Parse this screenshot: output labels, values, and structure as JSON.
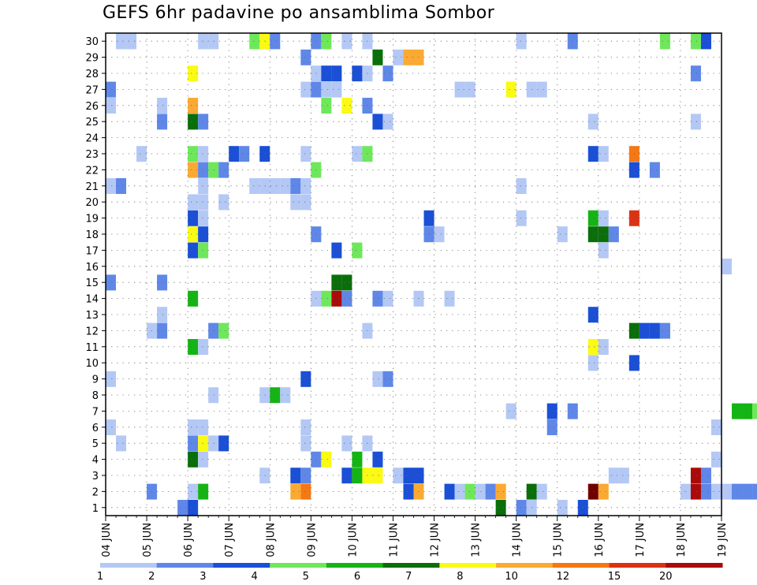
{
  "title": "GEFS 6hr padavine po ansamblima Sombor",
  "chart_data": {
    "type": "heatmap",
    "x_ticks": [
      "04 JUN",
      "05 JUN",
      "06 JUN",
      "07 JUN",
      "08 JUN",
      "09 JUN",
      "10 JUN",
      "11 JUN",
      "12 JUN",
      "13 JUN",
      "14 JUN",
      "15 JUN",
      "16 JUN",
      "17 JUN",
      "18 JUN",
      "19 JUN"
    ],
    "y_ticks": [
      "1",
      "2",
      "3",
      "4",
      "5",
      "6",
      "7",
      "8",
      "9",
      "10",
      "11",
      "12",
      "13",
      "14",
      "15",
      "16",
      "17",
      "18",
      "19",
      "20",
      "21",
      "22",
      "23",
      "24",
      "25",
      "26",
      "27",
      "28",
      "29",
      "30"
    ],
    "xlim": [
      "04 JUN 00Z",
      "19 JUN 00Z"
    ],
    "ylim": [
      1,
      30
    ],
    "grid": true,
    "colorbar": {
      "labels": [
        "1",
        "2",
        "3",
        "4",
        "5",
        "6",
        "7",
        "8",
        "10",
        "12",
        "15",
        "20"
      ],
      "colors": [
        "#b4c8f5",
        "#5f87e8",
        "#1a4fd6",
        "#6ee85a",
        "#14b414",
        "#0a6e0a",
        "#fafa14",
        "#faaa32",
        "#f57814",
        "#dc3214",
        "#aa0a0a",
        "#6e0000"
      ]
    },
    "cells": [
      [
        1,
        30,
        1
      ],
      [
        2,
        30,
        1
      ],
      [
        9,
        30,
        1
      ],
      [
        10,
        30,
        1
      ],
      [
        14,
        30,
        4
      ],
      [
        15,
        30,
        7
      ],
      [
        16,
        30,
        2
      ],
      [
        20,
        30,
        2
      ],
      [
        21,
        30,
        4
      ],
      [
        23,
        30,
        1
      ],
      [
        25,
        30,
        1
      ],
      [
        40,
        30,
        1
      ],
      [
        45,
        30,
        2
      ],
      [
        54,
        30,
        4
      ],
      [
        57,
        30,
        4
      ],
      [
        58,
        30,
        3
      ],
      [
        64,
        30,
        3
      ],
      [
        65,
        30,
        4
      ],
      [
        19,
        29,
        2
      ],
      [
        26,
        29,
        6
      ],
      [
        28,
        29,
        1
      ],
      [
        29,
        29,
        8
      ],
      [
        30,
        29,
        8
      ],
      [
        8,
        28,
        7
      ],
      [
        20,
        28,
        1
      ],
      [
        21,
        28,
        3
      ],
      [
        22,
        28,
        3
      ],
      [
        24,
        28,
        3
      ],
      [
        25,
        28,
        1
      ],
      [
        27,
        28,
        2
      ],
      [
        57,
        28,
        2
      ],
      [
        64,
        28,
        5
      ],
      [
        65,
        28,
        2
      ],
      [
        66,
        28,
        2
      ],
      [
        0,
        27,
        2
      ],
      [
        19,
        27,
        1
      ],
      [
        20,
        27,
        2
      ],
      [
        21,
        27,
        1
      ],
      [
        22,
        27,
        1
      ],
      [
        34,
        27,
        1
      ],
      [
        35,
        27,
        1
      ],
      [
        39,
        27,
        7
      ],
      [
        41,
        27,
        1
      ],
      [
        42,
        27,
        1
      ],
      [
        0,
        26,
        1
      ],
      [
        5,
        26,
        1
      ],
      [
        8,
        26,
        8
      ],
      [
        21,
        26,
        4
      ],
      [
        23,
        26,
        7
      ],
      [
        25,
        26,
        2
      ],
      [
        5,
        25,
        2
      ],
      [
        8,
        25,
        6
      ],
      [
        9,
        25,
        2
      ],
      [
        26,
        25,
        3
      ],
      [
        27,
        25,
        1
      ],
      [
        47,
        25,
        1
      ],
      [
        57,
        25,
        1
      ],
      [
        3,
        23,
        1
      ],
      [
        8,
        23,
        4
      ],
      [
        9,
        23,
        1
      ],
      [
        12,
        23,
        3
      ],
      [
        13,
        23,
        2
      ],
      [
        15,
        23,
        3
      ],
      [
        19,
        23,
        1
      ],
      [
        24,
        23,
        1
      ],
      [
        25,
        23,
        4
      ],
      [
        47,
        23,
        3
      ],
      [
        48,
        23,
        1
      ],
      [
        51,
        23,
        9
      ],
      [
        67,
        23,
        3
      ],
      [
        8,
        22,
        8
      ],
      [
        9,
        22,
        2
      ],
      [
        10,
        22,
        4
      ],
      [
        11,
        22,
        2
      ],
      [
        20,
        22,
        4
      ],
      [
        51,
        22,
        3
      ],
      [
        53,
        22,
        2
      ],
      [
        0,
        21,
        1
      ],
      [
        1,
        21,
        2
      ],
      [
        9,
        21,
        1
      ],
      [
        14,
        21,
        1
      ],
      [
        15,
        21,
        1
      ],
      [
        16,
        21,
        1
      ],
      [
        17,
        21,
        1
      ],
      [
        18,
        21,
        2
      ],
      [
        19,
        21,
        1
      ],
      [
        40,
        21,
        1
      ],
      [
        8,
        20,
        1
      ],
      [
        9,
        20,
        1
      ],
      [
        11,
        20,
        1
      ],
      [
        18,
        20,
        1
      ],
      [
        19,
        20,
        1
      ],
      [
        8,
        19,
        3
      ],
      [
        9,
        19,
        1
      ],
      [
        31,
        19,
        3
      ],
      [
        40,
        19,
        1
      ],
      [
        47,
        19,
        5
      ],
      [
        48,
        19,
        1
      ],
      [
        51,
        19,
        10
      ],
      [
        8,
        18,
        7
      ],
      [
        9,
        18,
        3
      ],
      [
        20,
        18,
        2
      ],
      [
        31,
        18,
        2
      ],
      [
        32,
        18,
        1
      ],
      [
        44,
        18,
        1
      ],
      [
        47,
        18,
        6
      ],
      [
        48,
        18,
        6
      ],
      [
        49,
        18,
        2
      ],
      [
        8,
        17,
        3
      ],
      [
        9,
        17,
        4
      ],
      [
        22,
        17,
        3
      ],
      [
        24,
        17,
        4
      ],
      [
        48,
        17,
        1
      ],
      [
        60,
        16,
        1
      ],
      [
        0,
        15,
        2
      ],
      [
        5,
        15,
        2
      ],
      [
        22,
        15,
        6
      ],
      [
        23,
        15,
        6
      ],
      [
        65,
        15,
        2
      ],
      [
        8,
        14,
        5
      ],
      [
        20,
        14,
        1
      ],
      [
        21,
        14,
        4
      ],
      [
        22,
        14,
        11
      ],
      [
        23,
        14,
        2
      ],
      [
        26,
        14,
        2
      ],
      [
        27,
        14,
        1
      ],
      [
        30,
        14,
        1
      ],
      [
        33,
        14,
        1
      ],
      [
        5,
        13,
        1
      ],
      [
        47,
        13,
        3
      ],
      [
        4,
        12,
        1
      ],
      [
        5,
        12,
        2
      ],
      [
        10,
        12,
        2
      ],
      [
        11,
        12,
        4
      ],
      [
        25,
        12,
        1
      ],
      [
        51,
        12,
        6
      ],
      [
        52,
        12,
        3
      ],
      [
        53,
        12,
        3
      ],
      [
        54,
        12,
        2
      ],
      [
        8,
        11,
        5
      ],
      [
        9,
        11,
        1
      ],
      [
        47,
        11,
        7
      ],
      [
        48,
        11,
        1
      ],
      [
        47,
        10,
        1
      ],
      [
        51,
        10,
        3
      ],
      [
        0,
        9,
        1
      ],
      [
        19,
        9,
        3
      ],
      [
        26,
        9,
        1
      ],
      [
        27,
        9,
        2
      ],
      [
        10,
        8,
        1
      ],
      [
        15,
        8,
        1
      ],
      [
        16,
        8,
        5
      ],
      [
        17,
        8,
        1
      ],
      [
        66,
        8,
        1
      ],
      [
        67,
        8,
        6
      ],
      [
        39,
        7,
        1
      ],
      [
        43,
        7,
        3
      ],
      [
        45,
        7,
        2
      ],
      [
        61,
        7,
        5
      ],
      [
        62,
        7,
        5
      ],
      [
        63,
        7,
        4
      ],
      [
        64,
        7,
        2
      ],
      [
        66,
        7,
        4
      ],
      [
        67,
        7,
        6
      ],
      [
        0,
        6,
        1
      ],
      [
        8,
        6,
        1
      ],
      [
        9,
        6,
        1
      ],
      [
        19,
        6,
        1
      ],
      [
        43,
        6,
        2
      ],
      [
        59,
        6,
        1
      ],
      [
        1,
        5,
        1
      ],
      [
        8,
        5,
        2
      ],
      [
        9,
        5,
        7
      ],
      [
        10,
        5,
        1
      ],
      [
        11,
        5,
        3
      ],
      [
        19,
        5,
        1
      ],
      [
        23,
        5,
        1
      ],
      [
        25,
        5,
        1
      ],
      [
        8,
        4,
        6
      ],
      [
        9,
        4,
        1
      ],
      [
        20,
        4,
        2
      ],
      [
        21,
        4,
        7
      ],
      [
        24,
        4,
        5
      ],
      [
        26,
        4,
        3
      ],
      [
        59,
        4,
        1
      ],
      [
        15,
        3,
        1
      ],
      [
        18,
        3,
        3
      ],
      [
        19,
        3,
        2
      ],
      [
        23,
        3,
        3
      ],
      [
        24,
        3,
        5
      ],
      [
        25,
        3,
        7
      ],
      [
        26,
        3,
        7
      ],
      [
        28,
        3,
        1
      ],
      [
        29,
        3,
        3
      ],
      [
        30,
        3,
        3
      ],
      [
        49,
        3,
        1
      ],
      [
        50,
        3,
        1
      ],
      [
        57,
        3,
        11
      ],
      [
        58,
        3,
        2
      ],
      [
        4,
        2,
        2
      ],
      [
        8,
        2,
        1
      ],
      [
        9,
        2,
        5
      ],
      [
        18,
        2,
        8
      ],
      [
        19,
        2,
        9
      ],
      [
        29,
        2,
        3
      ],
      [
        30,
        2,
        8
      ],
      [
        33,
        2,
        3
      ],
      [
        34,
        2,
        1
      ],
      [
        35,
        2,
        4
      ],
      [
        36,
        2,
        1
      ],
      [
        37,
        2,
        2
      ],
      [
        38,
        2,
        8
      ],
      [
        41,
        2,
        6
      ],
      [
        42,
        2,
        1
      ],
      [
        47,
        2,
        12
      ],
      [
        48,
        2,
        8
      ],
      [
        56,
        2,
        1
      ],
      [
        57,
        2,
        11
      ],
      [
        58,
        2,
        2
      ],
      [
        59,
        2,
        1
      ],
      [
        60,
        2,
        1
      ],
      [
        61,
        2,
        2
      ],
      [
        62,
        2,
        2
      ],
      [
        63,
        2,
        2
      ],
      [
        64,
        2,
        6
      ],
      [
        65,
        2,
        1
      ],
      [
        7,
        1,
        2
      ],
      [
        8,
        1,
        3
      ],
      [
        38,
        1,
        6
      ],
      [
        40,
        1,
        2
      ],
      [
        41,
        1,
        1
      ],
      [
        44,
        1,
        1
      ],
      [
        46,
        1,
        3
      ]
    ]
  }
}
